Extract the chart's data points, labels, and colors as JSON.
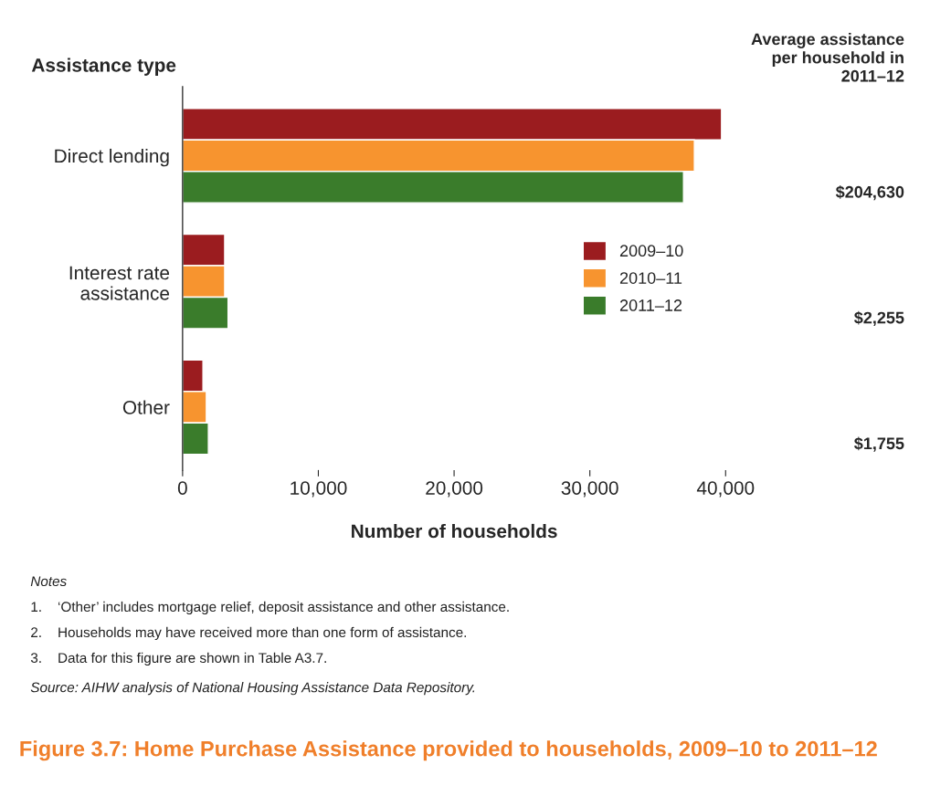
{
  "chart_data": {
    "type": "bar",
    "orientation": "horizontal",
    "title": "Figure 3.7: Home Purchase Assistance provided to households, 2009–10 to 2011–12",
    "xlabel": "Number of households",
    "ylabel": "Assistance type",
    "categories": [
      "Direct lending",
      "Interest rate\nassistance",
      "Other"
    ],
    "series": [
      {
        "name": "2009–10",
        "color": "#9b1c1f",
        "values": [
          39700,
          3100,
          1500
        ]
      },
      {
        "name": "2010–11",
        "color": "#f7942f",
        "values": [
          37700,
          3100,
          1750
        ]
      },
      {
        "name": "2011–12",
        "color": "#3a7c2b",
        "values": [
          36900,
          3350,
          1900
        ]
      }
    ],
    "xlim": [
      0,
      40000
    ],
    "xticks": [
      0,
      {
        "value": 10000,
        "label": "10,000"
      },
      {
        "value": 20000,
        "label": "20,000"
      },
      {
        "value": 30000,
        "label": "30,000"
      },
      {
        "value": 40000,
        "label": "40,000"
      }
    ],
    "grid": false,
    "legend": "right",
    "annotations": [
      "Average assistance\nper household in\n2011–12",
      "$204,630",
      "$2,255",
      "$1,755",
      "Notes",
      "1.    ‘Other’ includes mortgage relief, deposit assistance and other assistance.",
      "2.    Households may have received more than one form of assistance.",
      "3.    Data for this figure are shown in Table A3.7.",
      "Source: AIHW analysis of National Housing Assistance Data Repository."
    ]
  }
}
